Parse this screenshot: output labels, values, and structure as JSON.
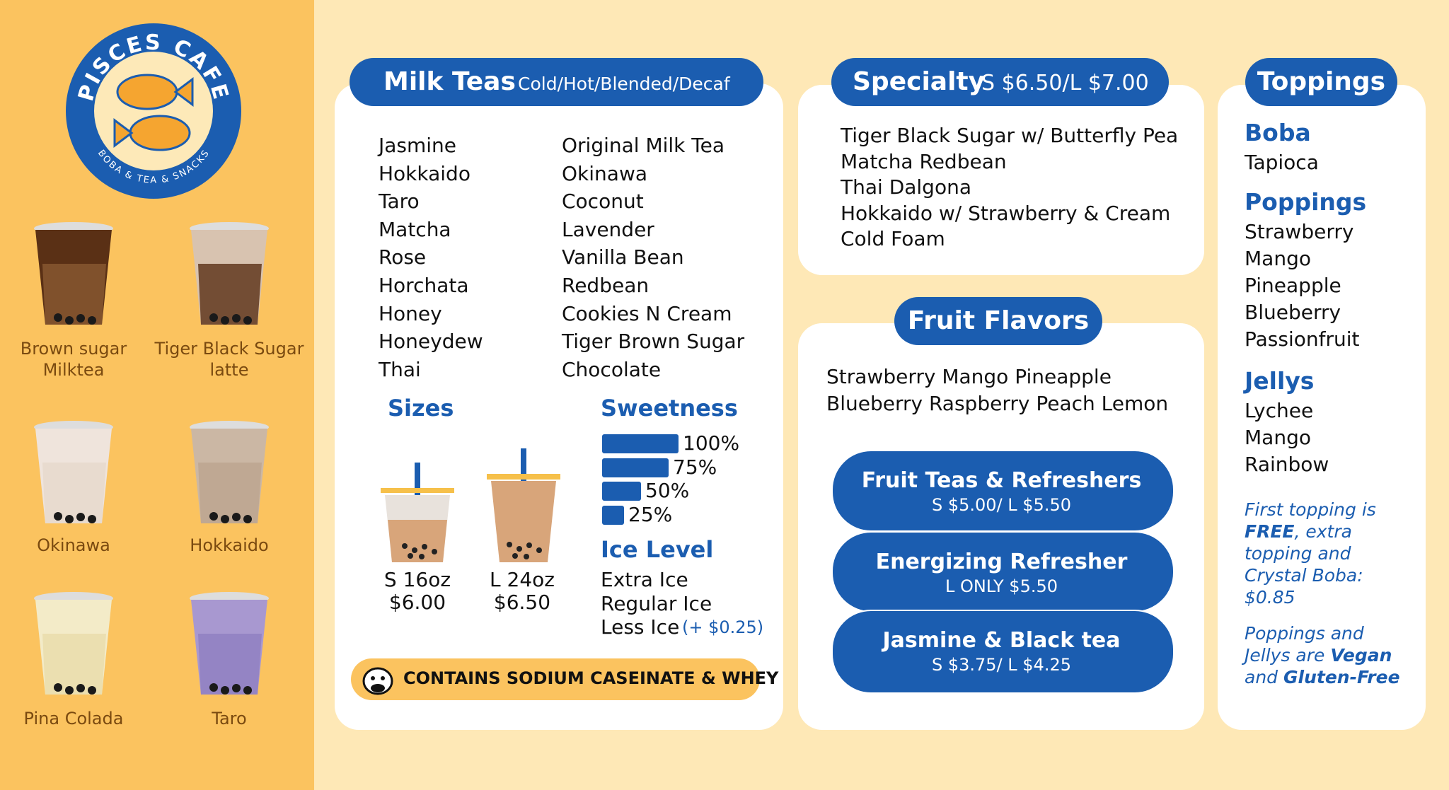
{
  "logo": {
    "name": "PISCES CAFE",
    "tagline": "BOBA & TEA & SNACKS"
  },
  "drinks": [
    "Brown sugar Milktea",
    "Tiger Black Sugar latte",
    "Okinawa",
    "Hokkaido",
    "Pina Colada",
    "Taro"
  ],
  "milk_teas": {
    "title": "Milk Teas",
    "subtitle": "Cold/Hot/Blended/Decaf",
    "left": [
      "Jasmine",
      "Hokkaido",
      "Taro",
      "Matcha",
      "Rose",
      "Horchata",
      "Honey",
      "Honeydew",
      "Thai"
    ],
    "right": [
      "Original Milk Tea",
      "Okinawa",
      "Coconut",
      "Lavender",
      "Vanilla Bean",
      "Redbean",
      "Cookies N Cream",
      "Tiger Brown Sugar",
      "Chocolate"
    ]
  },
  "sizes": {
    "title": "Sizes",
    "items": [
      {
        "label": "S 16oz",
        "price": "$6.00"
      },
      {
        "label": "L 24oz",
        "price": "$6.50"
      }
    ]
  },
  "sweetness": {
    "title": "Sweetness",
    "levels": [
      "100%",
      "75%",
      "50%",
      "25%"
    ]
  },
  "ice_level": {
    "title": "Ice Level",
    "items": [
      "Extra Ice",
      "Regular Ice",
      "Less Ice"
    ],
    "note": "(+ $0.25)"
  },
  "allergen": "CONTAINS SODIUM CASEINATE & WHEY",
  "specialty": {
    "title": "Specialty",
    "price": "S $6.50/L $7.00",
    "items": [
      "Tiger Black Sugar w/ Butterfly Pea",
      "Matcha Redbean",
      "Thai Dalgona",
      "Hokkaido w/ Strawberry & Cream",
      "Cold Foam"
    ]
  },
  "fruit": {
    "title": "Fruit Flavors",
    "lines": [
      "Strawberry Mango Pineapple",
      "Blueberry Raspberry Peach Lemon"
    ],
    "pills": [
      {
        "name": "Fruit Teas & Refreshers",
        "price": "S $5.00/ L $5.50"
      },
      {
        "name": "Energizing Refresher",
        "price": "L ONLY $5.50"
      },
      {
        "name": "Jasmine & Black tea",
        "price": "S $3.75/ L $4.25"
      }
    ]
  },
  "toppings": {
    "title": "Toppings",
    "groups": [
      {
        "name": "Boba",
        "items": [
          "Tapioca"
        ]
      },
      {
        "name": "Poppings",
        "items": [
          "Strawberry",
          "Mango",
          "Pineapple",
          "Blueberry",
          "Passionfruit"
        ]
      },
      {
        "name": "Jellys",
        "items": [
          "Lychee",
          "Mango",
          "Rainbow"
        ]
      }
    ],
    "note1": [
      "First topping is ",
      "FREE",
      ", extra topping and Crystal Boba: $0.85"
    ],
    "note2": [
      "Poppings and Jellys are ",
      "Vegan",
      " and ",
      "Gluten-Free"
    ]
  }
}
